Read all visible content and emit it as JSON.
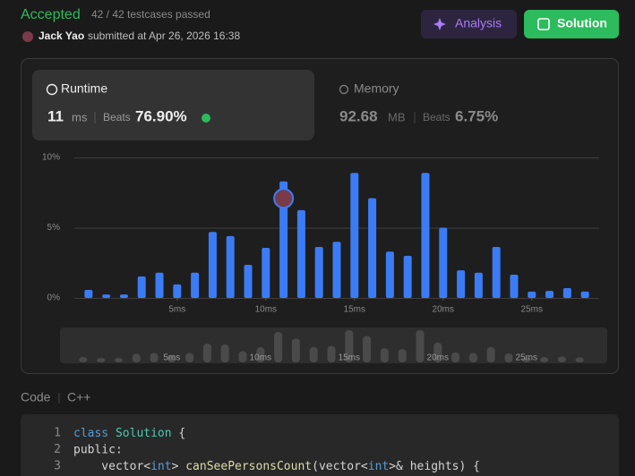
{
  "header": {
    "status": "Accepted",
    "testcases": "42 / 42 testcases passed",
    "user": "Jack Yao",
    "submitted": "submitted at Apr 26, 2026 16:38"
  },
  "buttons": {
    "analysis": "Analysis",
    "solution": "Solution"
  },
  "runtime": {
    "label": "Runtime",
    "value": "11",
    "unit": "ms",
    "beats_label": "Beats",
    "beats": "76.90%"
  },
  "memory": {
    "label": "Memory",
    "value": "92.68",
    "unit": "MB",
    "beats_label": "Beats",
    "beats": "6.75%"
  },
  "chart_data": {
    "type": "histogram",
    "color": "#3b7cf6",
    "overview_color": "#4a4a4a",
    "x": [
      0,
      1,
      2,
      3,
      4,
      5,
      6,
      7,
      8,
      9,
      10,
      11,
      12,
      13,
      14,
      15,
      16,
      17,
      18,
      19,
      20,
      21,
      22,
      23,
      24,
      25,
      26,
      27,
      28
    ],
    "values": [
      0.57,
      0.25,
      0.25,
      1.53,
      1.8,
      0.96,
      1.8,
      4.7,
      4.4,
      2.36,
      3.57,
      8.3,
      6.25,
      3.63,
      4.0,
      8.9,
      7.1,
      3.3,
      3.0,
      8.9,
      5.0,
      1.97,
      1.8,
      3.63,
      1.66,
      0.45,
      0.5,
      0.7,
      0.45
    ],
    "xlim": [
      -0.8,
      28.8
    ],
    "xticks": [
      {
        "value": 5,
        "label": "5ms"
      },
      {
        "value": 10,
        "label": "10ms"
      },
      {
        "value": 15,
        "label": "15ms"
      },
      {
        "value": 20,
        "label": "20ms"
      },
      {
        "value": 25,
        "label": "25ms"
      }
    ],
    "ylim": [
      0,
      10
    ],
    "yticks": [
      {
        "value": 0,
        "label": "0%"
      },
      {
        "value": 5,
        "label": "5%"
      },
      {
        "value": 10,
        "label": "10%"
      }
    ],
    "grid": true,
    "highlight": 11
  },
  "code": {
    "label": "Code",
    "language": "C++",
    "line_numbers": [
      "1",
      "2",
      "3"
    ],
    "lines": [
      [
        "class",
        " Solution",
        " {"
      ],
      [
        "public:"
      ],
      [
        "    vector<",
        "int",
        "> ",
        "canSeePersonsCount",
        "(vector<",
        "int",
        ">& heights) {"
      ]
    ]
  }
}
